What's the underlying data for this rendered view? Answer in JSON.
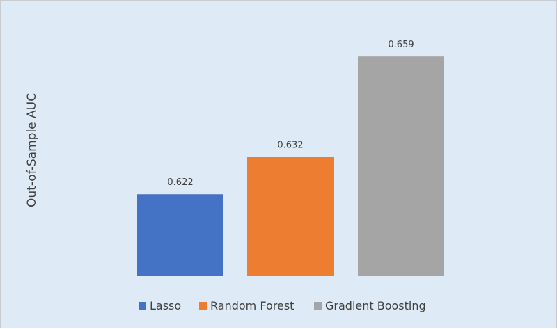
{
  "chart_data": {
    "type": "bar",
    "title": "",
    "xlabel": "",
    "ylabel": "Out-of-Sample AUC",
    "categories": [
      "Lasso",
      "Random Forest",
      "Gradient Boosting"
    ],
    "values": [
      0.622,
      0.632,
      0.659
    ],
    "data_labels": [
      "0.622",
      "0.632",
      "0.659"
    ],
    "colors": [
      "#4472C4",
      "#ED7D31",
      "#A5A5A5"
    ],
    "ylim": [
      0.6,
      0.668
    ],
    "grid": false,
    "y_axis_visible": false,
    "legend": "bottom",
    "background": "#DEEBF7"
  }
}
